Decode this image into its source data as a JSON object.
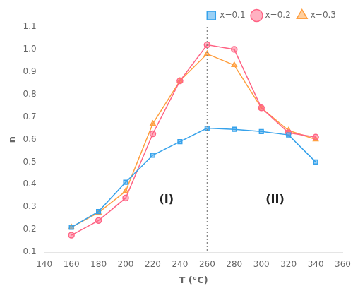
{
  "chart_data": {
    "type": "line",
    "x": [
      160,
      180,
      200,
      220,
      240,
      260,
      280,
      300,
      320,
      340
    ],
    "series": [
      {
        "name": "x=0.1",
        "marker": "square",
        "values": [
          0.21,
          0.28,
          0.41,
          0.53,
          0.59,
          0.65,
          0.645,
          0.635,
          0.62,
          0.5
        ]
      },
      {
        "name": "x=0.2",
        "marker": "circle",
        "values": [
          0.175,
          0.24,
          0.34,
          0.625,
          0.86,
          1.02,
          1.0,
          0.74,
          0.63,
          0.61
        ]
      },
      {
        "name": "x=0.3",
        "marker": "triangle",
        "values": [
          0.21,
          0.275,
          0.37,
          0.67,
          0.86,
          0.98,
          0.93,
          0.74,
          0.64,
          0.6
        ]
      }
    ],
    "x_label": "T (°C)",
    "y_label": "n",
    "xlim": [
      140,
      360
    ],
    "ylim": [
      0.1,
      1.1
    ],
    "xticks": [
      140,
      160,
      180,
      200,
      220,
      240,
      260,
      280,
      300,
      320,
      340,
      360
    ],
    "yticks": [
      0.1,
      0.2,
      0.3,
      0.4,
      0.5,
      0.6,
      0.7,
      0.8,
      0.9,
      {
        "value": 1.0,
        "label": "1.0"
      },
      1.1
    ],
    "annotations": [
      {
        "x": 260,
        "line_style": "dotted",
        "color": "#808080"
      },
      {
        "text": "(I)",
        "x": 230,
        "y": 0.32
      },
      {
        "text": "(II)",
        "x": 310,
        "y": 0.32
      }
    ],
    "legend": "upper right",
    "grid": false
  }
}
